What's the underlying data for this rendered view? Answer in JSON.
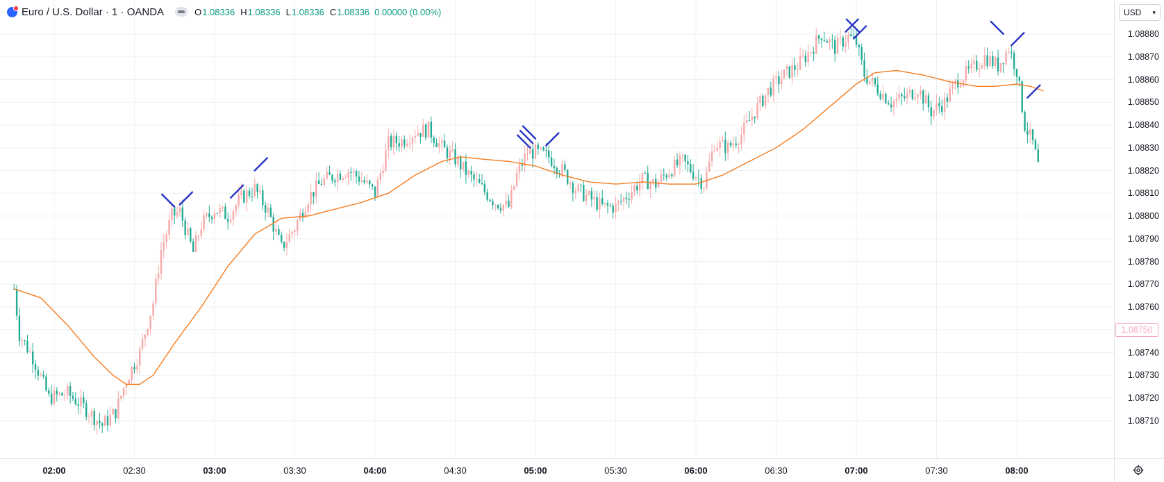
{
  "legend": {
    "symbol_icon": "globe-icon",
    "title": "Euro / U.S. Dollar · 1 · OANDA",
    "visibility_icon": "eye-icon",
    "o_label": "O",
    "o_value": "1.08336",
    "h_label": "H",
    "h_value": "1.08336",
    "l_label": "L",
    "l_value": "1.08336",
    "c_label": "C",
    "c_value": "1.08336",
    "change": "0.00000 (0.00%)"
  },
  "price_scale": {
    "currency": "USD",
    "labels": [
      "1.08880",
      "1.08870",
      "1.08860",
      "1.08850",
      "1.08840",
      "1.08830",
      "1.08820",
      "1.08810",
      "1.08800",
      "1.08790",
      "1.08780",
      "1.08770",
      "1.08760",
      "1.08740",
      "1.08730",
      "1.08720",
      "1.08710"
    ],
    "cursor_price": "1.08750"
  },
  "time_scale": {
    "labels": [
      "02:00",
      "02:30",
      "03:00",
      "03:30",
      "04:00",
      "04:30",
      "05:00",
      "05:30",
      "06:00",
      "06:30",
      "07:00",
      "07:30",
      "08:00"
    ],
    "settings_icon": "gear-icon"
  },
  "colors": {
    "up": "#f7a9a8",
    "down": "#22ab94",
    "ma": "#f57c1f",
    "drawing": "#2633c4",
    "grid": "#eef0f4"
  },
  "chart_data": {
    "type": "candlestick",
    "symbol": "Euro / U.S. Dollar",
    "interval": "1",
    "ylim": [
      1.08705,
      1.0889
    ],
    "x_range": [
      "01:45",
      "08:10"
    ],
    "close_anchors": [
      [
        "01:45",
        1.08768
      ],
      [
        "01:47",
        1.08748
      ],
      [
        "01:52",
        1.08738
      ],
      [
        "01:58",
        1.0872
      ],
      [
        "02:05",
        1.08722
      ],
      [
        "02:12",
        1.08715
      ],
      [
        "02:18",
        1.08708
      ],
      [
        "02:23",
        1.08714
      ],
      [
        "02:27",
        1.08728
      ],
      [
        "02:32",
        1.0874
      ],
      [
        "02:37",
        1.08762
      ],
      [
        "02:40",
        1.08785
      ],
      [
        "02:44",
        1.088
      ],
      [
        "02:47",
        1.08802
      ],
      [
        "02:52",
        1.08784
      ],
      [
        "02:55",
        1.08796
      ],
      [
        "03:00",
        1.08803
      ],
      [
        "03:05",
        1.088
      ],
      [
        "03:10",
        1.08808
      ],
      [
        "03:15",
        1.08812
      ],
      [
        "03:20",
        1.08802
      ],
      [
        "03:25",
        1.08786
      ],
      [
        "03:30",
        1.08795
      ],
      [
        "03:35",
        1.08808
      ],
      [
        "03:40",
        1.08815
      ],
      [
        "03:45",
        1.08818
      ],
      [
        "03:50",
        1.0882
      ],
      [
        "03:55",
        1.08816
      ],
      [
        "04:00",
        1.0881
      ],
      [
        "04:05",
        1.08832
      ],
      [
        "04:10",
        1.08833
      ],
      [
        "04:15",
        1.08837
      ],
      [
        "04:20",
        1.08838
      ],
      [
        "04:25",
        1.0883
      ],
      [
        "04:30",
        1.08825
      ],
      [
        "04:35",
        1.08818
      ],
      [
        "04:40",
        1.08812
      ],
      [
        "04:45",
        1.08806
      ],
      [
        "04:50",
        1.08804
      ],
      [
        "04:53",
        1.08818
      ],
      [
        "04:57",
        1.08828
      ],
      [
        "05:00",
        1.08828
      ],
      [
        "05:05",
        1.08826
      ],
      [
        "05:10",
        1.0882
      ],
      [
        "05:15",
        1.08812
      ],
      [
        "05:20",
        1.08808
      ],
      [
        "05:25",
        1.08804
      ],
      [
        "05:30",
        1.08804
      ],
      [
        "05:35",
        1.0881
      ],
      [
        "05:40",
        1.08816
      ],
      [
        "05:45",
        1.08814
      ],
      [
        "05:50",
        1.0882
      ],
      [
        "05:55",
        1.08824
      ],
      [
        "06:00",
        1.08818
      ],
      [
        "06:03",
        1.08814
      ],
      [
        "06:07",
        1.08832
      ],
      [
        "06:12",
        1.0883
      ],
      [
        "06:17",
        1.08836
      ],
      [
        "06:22",
        1.08846
      ],
      [
        "06:27",
        1.08855
      ],
      [
        "06:33",
        1.08862
      ],
      [
        "06:38",
        1.08866
      ],
      [
        "06:43",
        1.08873
      ],
      [
        "06:47",
        1.0888
      ],
      [
        "06:52",
        1.08874
      ],
      [
        "06:57",
        1.08879
      ],
      [
        "07:00",
        1.08876
      ],
      [
        "07:03",
        1.08862
      ],
      [
        "07:08",
        1.08856
      ],
      [
        "07:13",
        1.0885
      ],
      [
        "07:18",
        1.08852
      ],
      [
        "07:23",
        1.08856
      ],
      [
        "07:28",
        1.08846
      ],
      [
        "07:33",
        1.0885
      ],
      [
        "07:38",
        1.0886
      ],
      [
        "07:43",
        1.08864
      ],
      [
        "07:48",
        1.0887
      ],
      [
        "07:53",
        1.08866
      ],
      [
        "07:57",
        1.08874
      ],
      [
        "08:00",
        1.08864
      ],
      [
        "08:03",
        1.0884
      ],
      [
        "08:06",
        1.08832
      ],
      [
        "08:08",
        1.08822
      ]
    ],
    "series": [
      {
        "type": "line",
        "points": [
          [
            "01:45",
            1.08768
          ],
          [
            "01:55",
            1.08764
          ],
          [
            "02:05",
            1.08752
          ],
          [
            "02:15",
            1.08738
          ],
          [
            "02:22",
            1.0873
          ],
          [
            "02:27",
            1.08726
          ],
          [
            "02:32",
            1.08726
          ],
          [
            "02:37",
            1.0873
          ],
          [
            "02:45",
            1.08744
          ],
          [
            "02:55",
            1.0876
          ],
          [
            "03:05",
            1.08778
          ],
          [
            "03:15",
            1.08792
          ],
          [
            "03:25",
            1.08799
          ],
          [
            "03:35",
            1.088
          ],
          [
            "03:45",
            1.08803
          ],
          [
            "03:55",
            1.08806
          ],
          [
            "04:05",
            1.0881
          ],
          [
            "04:15",
            1.08818
          ],
          [
            "04:25",
            1.08824
          ],
          [
            "04:32",
            1.08826
          ],
          [
            "04:40",
            1.08825
          ],
          [
            "04:50",
            1.08824
          ],
          [
            "05:00",
            1.08822
          ],
          [
            "05:10",
            1.08818
          ],
          [
            "05:20",
            1.08815
          ],
          [
            "05:30",
            1.08814
          ],
          [
            "05:40",
            1.08815
          ],
          [
            "05:50",
            1.08814
          ],
          [
            "06:00",
            1.08814
          ],
          [
            "06:10",
            1.08818
          ],
          [
            "06:20",
            1.08824
          ],
          [
            "06:30",
            1.0883
          ],
          [
            "06:40",
            1.08838
          ],
          [
            "06:50",
            1.08848
          ],
          [
            "07:00",
            1.08858
          ],
          [
            "07:07",
            1.08863
          ],
          [
            "07:15",
            1.08864
          ],
          [
            "07:25",
            1.08862
          ],
          [
            "07:35",
            1.08859
          ],
          [
            "07:45",
            1.08857
          ],
          [
            "07:52",
            1.08857
          ],
          [
            "08:00",
            1.08858
          ],
          [
            "08:05",
            1.08857
          ],
          [
            "08:10",
            1.08855
          ]
        ]
      }
    ],
    "drawing_ticks": [
      {
        "time": "02:45",
        "price": 1.08804,
        "dir": "down"
      },
      {
        "time": "02:47",
        "price": 1.08805,
        "dir": "up"
      },
      {
        "time": "03:06",
        "price": 1.08808,
        "dir": "up"
      },
      {
        "time": "03:15",
        "price": 1.0882,
        "dir": "up"
      },
      {
        "time": "04:58",
        "price": 1.0883,
        "dir": "down"
      },
      {
        "time": "04:59",
        "price": 1.08832,
        "dir": "down"
      },
      {
        "time": "05:00",
        "price": 1.08834,
        "dir": "down"
      },
      {
        "time": "05:04",
        "price": 1.08831,
        "dir": "up"
      },
      {
        "time": "06:56",
        "price": 1.08881,
        "dir": "up"
      },
      {
        "time": "06:59",
        "price": 1.08878,
        "dir": "up"
      },
      {
        "time": "07:01",
        "price": 1.08881,
        "dir": "down"
      },
      {
        "time": "07:55",
        "price": 1.0888,
        "dir": "down"
      },
      {
        "time": "07:58",
        "price": 1.08875,
        "dir": "up"
      },
      {
        "time": "08:04",
        "price": 1.08852,
        "dir": "up"
      }
    ]
  }
}
